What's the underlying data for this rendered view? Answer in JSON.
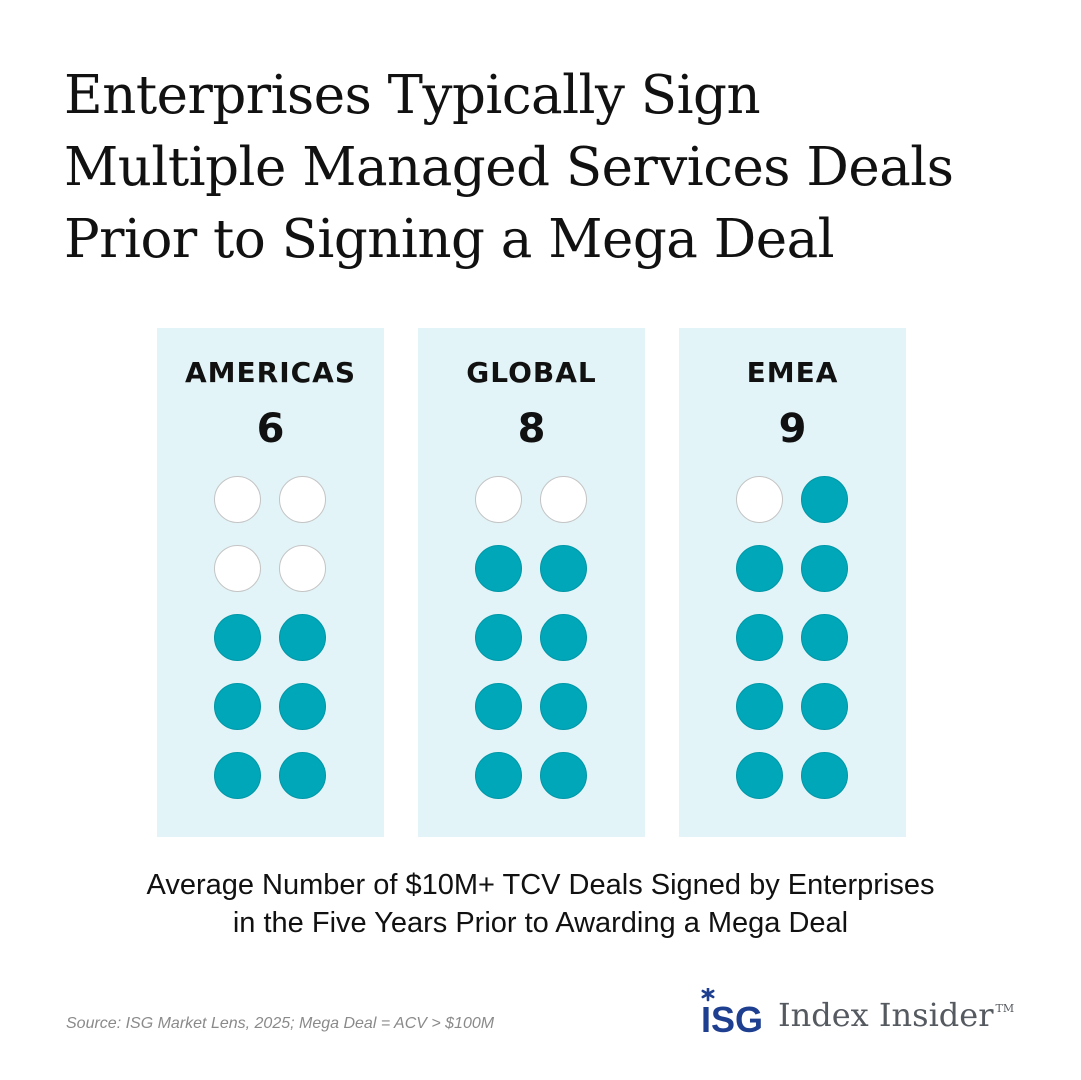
{
  "title_lines": [
    "Enterprises Typically Sign",
    "Multiple Managed Services Deals",
    "Prior to Signing a Mega Deal"
  ],
  "chart_data": {
    "type": "pictogram",
    "title": "Enterprises Typically Sign Multiple Managed Services Deals Prior to Signing a Mega Deal",
    "categories": [
      "AMERICAS",
      "GLOBAL",
      "EMEA"
    ],
    "values": [
      6,
      8,
      9
    ],
    "max_icons": 10,
    "caption": "Average Number of $10M+ TCV Deals Signed by Enterprises in the Five Years Prior to Awarding a Mega Deal"
  },
  "panels": [
    {
      "region": "AMERICAS",
      "value_label": "6"
    },
    {
      "region": "GLOBAL",
      "value_label": "8"
    },
    {
      "region": "EMEA",
      "value_label": "9"
    }
  ],
  "caption_lines": [
    "Average Number of $10M+ TCV Deals Signed by Enterprises",
    "in the Five Years Prior to Awarding a Mega Deal"
  ],
  "source": "Source: ISG Market Lens, 2025; Mega Deal = ACV > $100M",
  "brand": {
    "mark": "ISG",
    "name": "Index Insider",
    "tm": "TM"
  },
  "colors": {
    "filled_dot": "#00a7b8",
    "empty_dot": "#ffffff",
    "panel_bg": "#e3f4f8",
    "brand_blue": "#1e3f8f",
    "brand_gray": "#555a60"
  }
}
